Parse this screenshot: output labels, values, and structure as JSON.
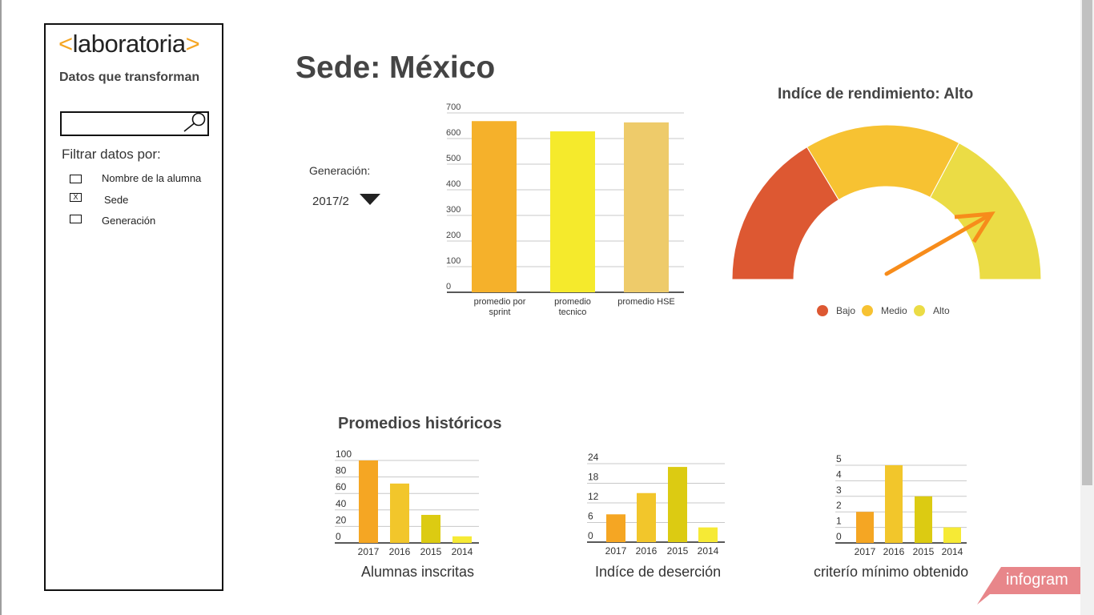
{
  "brand": {
    "logo_open": "<",
    "logo_text": "laboratoria",
    "logo_close": ">",
    "tagline": "Datos que transforman"
  },
  "search": {
    "placeholder": "",
    "value": ""
  },
  "filters": {
    "title": "Filtrar datos por:",
    "items": [
      {
        "label": "Nombre de la alumna",
        "checked": false,
        "mark": ""
      },
      {
        "label": "Sede",
        "checked": true,
        "mark": "X"
      },
      {
        "label": "Generación",
        "checked": false,
        "mark": ""
      }
    ]
  },
  "page": {
    "title": "Sede: México"
  },
  "generation": {
    "label": "Generación:",
    "value": "2017/2"
  },
  "colors": {
    "orange": "#f5a623",
    "yellow": "#f5ea2c",
    "sand": "#eecb6a",
    "red": "#dd5832",
    "amber": "#f7c232",
    "lightyellow": "#ebdc45",
    "arrow": "#f78c1b",
    "gold": "#f2c62b",
    "olive": "#dccb12",
    "brightyellow": "#f6ea35",
    "infogram": "#e8868a"
  },
  "chart_data": [
    {
      "type": "bar",
      "categories": [
        "promedio por sprint",
        "promedio tecnico",
        "promedio HSE"
      ],
      "values": [
        668,
        628,
        663
      ],
      "ylim": [
        0,
        700
      ],
      "yticks": [
        0,
        100,
        200,
        300,
        400,
        500,
        600,
        700
      ],
      "colors": [
        "#f5b12b",
        "#f5ea2c",
        "#eecb6a"
      ]
    },
    {
      "type": "gauge",
      "title": "Indíce de rendimiento: Alto",
      "legend": [
        "Bajo",
        "Medio",
        "Alto"
      ],
      "colors": [
        "#dd5832",
        "#f7c232",
        "#ebdc45"
      ],
      "value": "Alto"
    },
    {
      "type": "bar",
      "title": "Alumnas inscritas",
      "categories": [
        "2017",
        "2016",
        "2015",
        "2014"
      ],
      "values": [
        100,
        72,
        34,
        8
      ],
      "ylim": [
        0,
        100
      ],
      "yticks": [
        0,
        20,
        40,
        60,
        80,
        100
      ],
      "colors": [
        "#f5a623",
        "#f2c62b",
        "#dccb12",
        "#f6ea35"
      ]
    },
    {
      "type": "bar",
      "title": "Indíce de deserción",
      "categories": [
        "2017",
        "2016",
        "2015",
        "2014"
      ],
      "values": [
        8.5,
        15,
        23,
        4.5
      ],
      "ylim": [
        0,
        24
      ],
      "yticks": [
        0,
        6,
        12,
        18,
        24
      ],
      "colors": [
        "#f5a623",
        "#f2c62b",
        "#dccb12",
        "#f6ea35"
      ]
    },
    {
      "type": "bar",
      "title": "criterío mínimo obtenido",
      "categories": [
        "2017",
        "2016",
        "2015",
        "2014"
      ],
      "values": [
        2,
        5,
        3,
        1
      ],
      "ylim": [
        0,
        5
      ],
      "yticks": [
        0,
        1,
        2,
        3,
        4,
        5
      ],
      "colors": [
        "#f5a623",
        "#f2c62b",
        "#dccb12",
        "#f6ea35"
      ]
    }
  ],
  "history": {
    "title": "Promedios históricos"
  },
  "footer": {
    "infogram": "infogram"
  }
}
